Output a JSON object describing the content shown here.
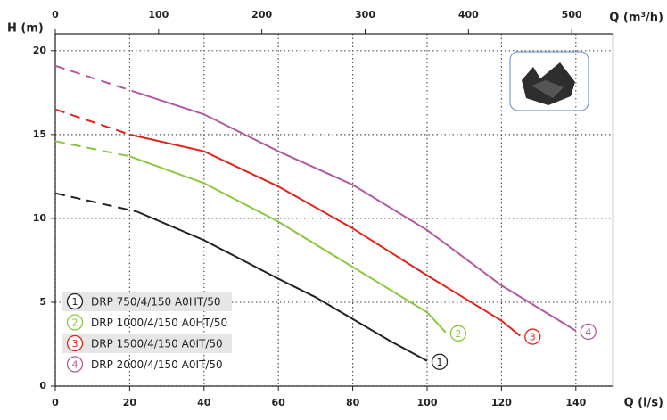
{
  "chart_data": {
    "type": "line",
    "y_label": "H (m)",
    "x_label": "Q (l/s)",
    "x2_label": "Q (m³/h)",
    "xlim": [
      0,
      150
    ],
    "xticks": [
      0,
      20,
      40,
      60,
      80,
      100,
      120,
      140
    ],
    "x2lim": [
      0,
      540
    ],
    "x2ticks": [
      0,
      100,
      200,
      300,
      400,
      500
    ],
    "ylim": [
      0,
      21
    ],
    "yticks": [
      0,
      5,
      10,
      15,
      20
    ],
    "grid": true,
    "legend": "lower left",
    "series": [
      {
        "name": "DRP 750/4/150 A0HT/50",
        "marker": "1",
        "color": "#222222",
        "x": [
          0,
          22,
          40,
          60,
          70,
          80,
          90,
          100
        ],
        "values": [
          11.5,
          10.4,
          8.7,
          6.4,
          5.3,
          4.0,
          2.7,
          1.5
        ]
      },
      {
        "name": "DRP 1000/4/150 A0HT/50",
        "marker": "2",
        "color": "#8cc63f",
        "x": [
          0,
          20,
          40,
          60,
          80,
          100,
          105
        ],
        "values": [
          14.6,
          13.7,
          12.1,
          9.8,
          7.1,
          4.4,
          3.2
        ]
      },
      {
        "name": "DRP 1500/4/150 A0IT/50",
        "marker": "3",
        "color": "#e2231a",
        "x": [
          0,
          20,
          40,
          60,
          80,
          100,
          120,
          125
        ],
        "values": [
          16.5,
          15.0,
          14.0,
          11.9,
          9.4,
          6.6,
          3.9,
          3.0
        ]
      },
      {
        "name": "DRP 2000/4/150 A0IT/50",
        "marker": "4",
        "color": "#b05aa0",
        "x": [
          0,
          22,
          40,
          60,
          80,
          100,
          120,
          140
        ],
        "values": [
          19.1,
          17.5,
          16.2,
          14.0,
          12.0,
          9.3,
          6.0,
          3.3
        ]
      }
    ]
  }
}
